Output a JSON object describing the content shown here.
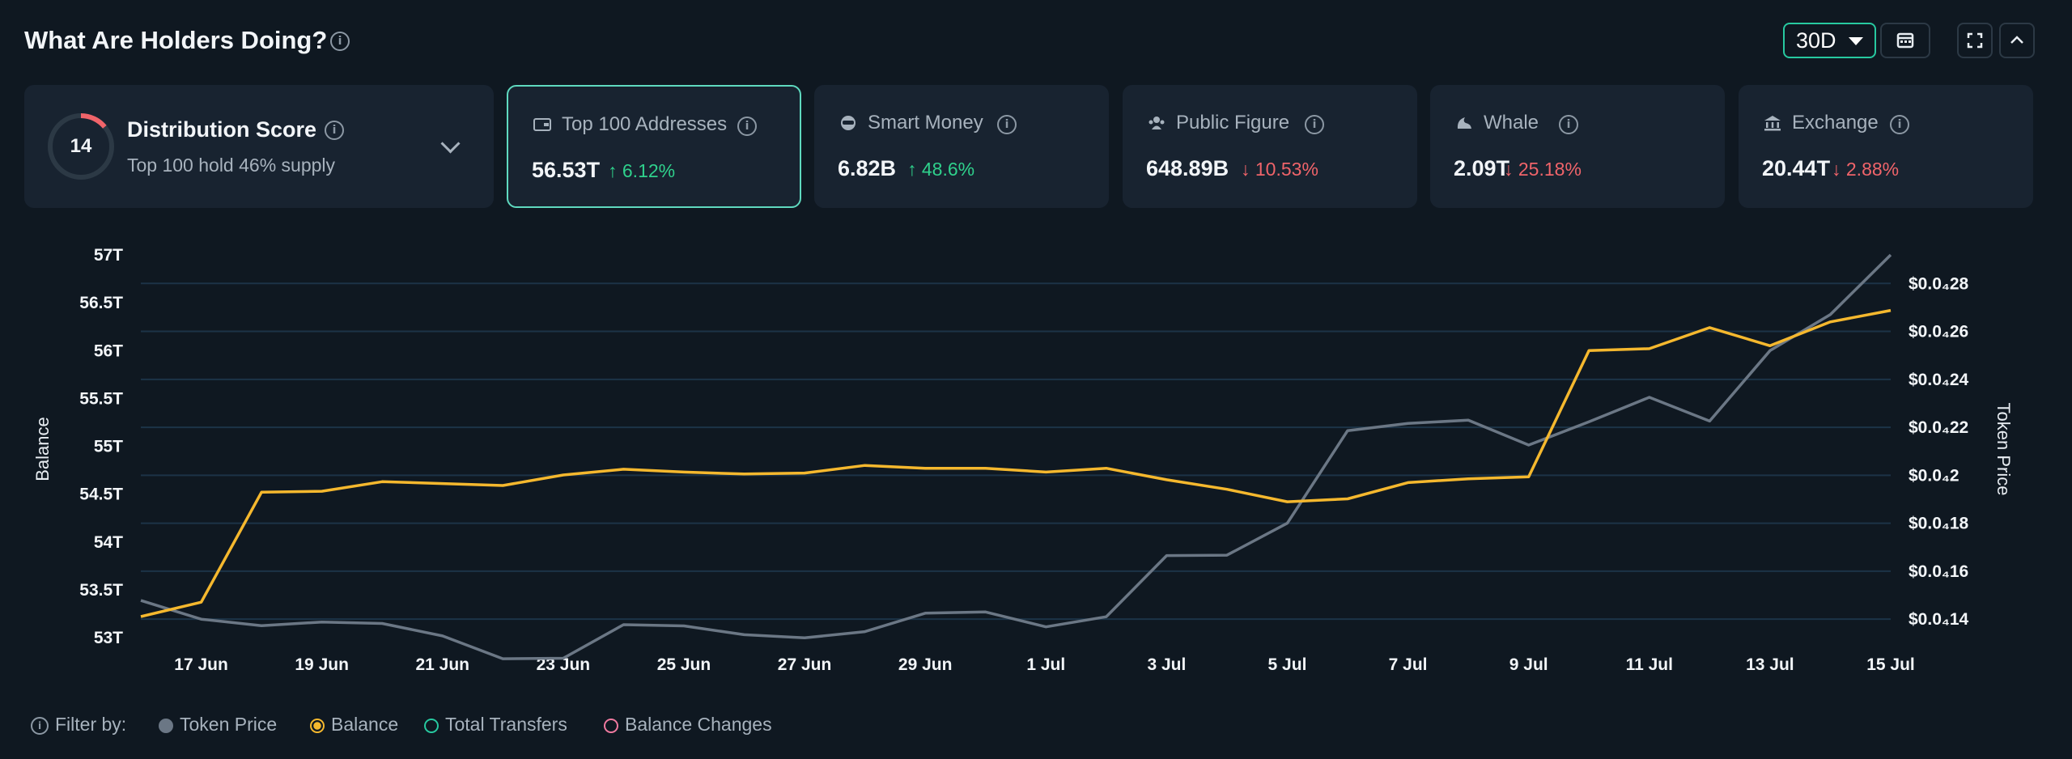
{
  "header": {
    "title": "What Are Holders Doing?",
    "range": "30D"
  },
  "distribution": {
    "score": "14",
    "title": "Distribution Score",
    "subtitle": "Top 100 hold 46% supply",
    "score_fraction": 0.14
  },
  "cards": [
    {
      "label": "Top 100 Addresses",
      "value": "56.53T",
      "change": "6.12%",
      "direction": "up",
      "icon": "wallet-icon"
    },
    {
      "label": "Smart Money",
      "value": "6.82B",
      "change": "48.6%",
      "direction": "up",
      "icon": "smart-money-icon"
    },
    {
      "label": "Public Figure",
      "value": "648.89B",
      "change": "10.53%",
      "direction": "down",
      "icon": "public-figure-icon"
    },
    {
      "label": "Whale",
      "value": "2.09T",
      "change": "25.18%",
      "direction": "down",
      "icon": "whale-icon"
    },
    {
      "label": "Exchange",
      "value": "20.44T",
      "change": "2.88%",
      "direction": "down",
      "icon": "bank-icon"
    }
  ],
  "legend": {
    "prefix": "Filter by:",
    "items": [
      {
        "label": "Token Price",
        "color": "#6b7785",
        "style": "filled"
      },
      {
        "label": "Balance",
        "color": "#f5b82e",
        "style": "selected"
      },
      {
        "label": "Total Transfers",
        "color": "#27c9a0",
        "style": "outline"
      },
      {
        "label": "Balance Changes",
        "color": "#f07aa0",
        "style": "outline"
      }
    ]
  },
  "chart_data": {
    "type": "line",
    "ylabel": "Balance",
    "y2label": "Token Price",
    "x": [
      "16 Jun",
      "17 Jun",
      "18 Jun",
      "19 Jun",
      "20 Jun",
      "21 Jun",
      "22 Jun",
      "23 Jun",
      "24 Jun",
      "25 Jun",
      "26 Jun",
      "27 Jun",
      "28 Jun",
      "29 Jun",
      "30 Jun",
      "1 Jul",
      "2 Jul",
      "3 Jul",
      "4 Jul",
      "5 Jul",
      "6 Jul",
      "7 Jul",
      "8 Jul",
      "9 Jul",
      "10 Jul",
      "11 Jul",
      "12 Jul",
      "13 Jul",
      "14 Jul",
      "15 Jul"
    ],
    "xticks": [
      "17 Jun",
      "19 Jun",
      "21 Jun",
      "23 Jun",
      "25 Jun",
      "27 Jun",
      "29 Jun",
      "1 Jul",
      "3 Jul",
      "5 Jul",
      "7 Jul",
      "9 Jul",
      "11 Jul",
      "13 Jul",
      "15 Jul"
    ],
    "ylim": [
      53,
      57
    ],
    "yticks": [
      "57T",
      "56.5T",
      "56T",
      "55.5T",
      "55T",
      "54.5T",
      "54T",
      "53.5T",
      "53T"
    ],
    "y2lim": [
      0.1323,
      0.2919
    ],
    "y2ticks": [
      {
        "value": 0.28,
        "label": "$0.0₄28"
      },
      {
        "value": 0.26,
        "label": "$0.0₄26"
      },
      {
        "value": 0.24,
        "label": "$0.0₄24"
      },
      {
        "value": 0.22,
        "label": "$0.0₄22"
      },
      {
        "value": 0.2,
        "label": "$0.0₄2"
      },
      {
        "value": 0.18,
        "label": "$0.0₄18"
      },
      {
        "value": 0.16,
        "label": "$0.0₄16"
      },
      {
        "value": 0.14,
        "label": "$0.0₄14"
      }
    ],
    "grid": true,
    "series": [
      {
        "name": "Balance",
        "axis": "left",
        "color": "#f5b82e",
        "values": [
          53.22,
          53.37,
          54.52,
          54.53,
          54.63,
          54.61,
          54.59,
          54.7,
          54.76,
          54.73,
          54.71,
          54.72,
          54.8,
          54.77,
          54.77,
          54.73,
          54.77,
          54.65,
          54.55,
          54.42,
          54.45,
          54.62,
          54.66,
          54.68,
          56.0,
          56.02,
          56.24,
          56.05,
          56.3,
          56.42
        ]
      },
      {
        "name": "Token Price",
        "axis": "right",
        "color": "#6b7785",
        "values": [
          0.1478,
          0.14,
          0.1373,
          0.1388,
          0.1382,
          0.133,
          0.1235,
          0.1237,
          0.1377,
          0.1372,
          0.1335,
          0.1322,
          0.1348,
          0.1425,
          0.143,
          0.1368,
          0.141,
          0.1665,
          0.1667,
          0.18,
          0.2186,
          0.2216,
          0.223,
          0.2126,
          0.2223,
          0.2325,
          0.2226,
          0.252,
          0.267,
          0.2919
        ]
      }
    ]
  }
}
